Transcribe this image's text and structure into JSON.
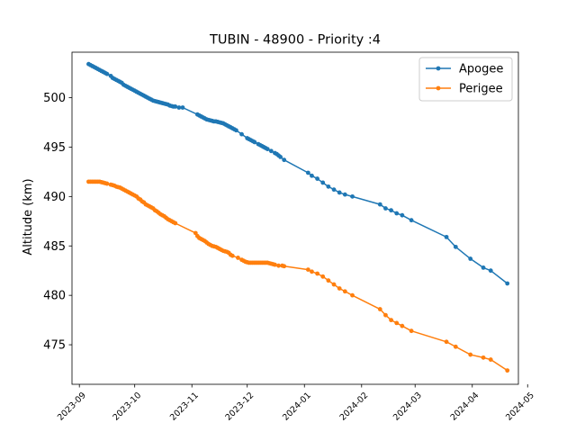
{
  "chart_data": {
    "type": "line",
    "title": "TUBIN - 48900 - Priority :4",
    "xlabel": "",
    "ylabel": "Altitude (km)",
    "x_ticks": [
      "2023-09",
      "2023-10",
      "2023-11",
      "2023-12",
      "2024-01",
      "2024-02",
      "2024-03",
      "2024-04",
      "2024-05"
    ],
    "y_ticks": [
      "475",
      "480",
      "485",
      "490",
      "495",
      "500"
    ],
    "ylim": [
      471,
      504.6
    ],
    "xlim": [
      "2023-08-28",
      "2024-04-26"
    ],
    "grid": false,
    "legend_position": "top-right",
    "series": [
      {
        "name": "Apogee",
        "color": "#1f77b4",
        "points": [
          [
            "2023-09-06",
            503.4
          ],
          [
            "2023-09-07",
            503.3
          ],
          [
            "2023-09-08",
            503.2
          ],
          [
            "2023-09-09",
            503.1
          ],
          [
            "2023-09-10",
            503.0
          ],
          [
            "2023-09-11",
            502.9
          ],
          [
            "2023-09-12",
            502.8
          ],
          [
            "2023-09-13",
            502.7
          ],
          [
            "2023-09-14",
            502.6
          ],
          [
            "2023-09-15",
            502.5
          ],
          [
            "2023-09-16",
            502.4
          ],
          [
            "2023-09-18",
            502.2
          ],
          [
            "2023-09-19",
            502.0
          ],
          [
            "2023-09-20",
            501.9
          ],
          [
            "2023-09-21",
            501.8
          ],
          [
            "2023-09-22",
            501.7
          ],
          [
            "2023-09-23",
            501.6
          ],
          [
            "2023-09-24",
            501.5
          ],
          [
            "2023-09-25",
            501.3
          ],
          [
            "2023-09-26",
            501.2
          ],
          [
            "2023-09-27",
            501.1
          ],
          [
            "2023-09-28",
            501.0
          ],
          [
            "2023-09-29",
            500.9
          ],
          [
            "2023-09-30",
            500.8
          ],
          [
            "2023-10-01",
            500.7
          ],
          [
            "2023-10-02",
            500.6
          ],
          [
            "2023-10-03",
            500.5
          ],
          [
            "2023-10-04",
            500.4
          ],
          [
            "2023-10-05",
            500.3
          ],
          [
            "2023-10-06",
            500.2
          ],
          [
            "2023-10-07",
            500.1
          ],
          [
            "2023-10-08",
            500.0
          ],
          [
            "2023-10-09",
            499.9
          ],
          [
            "2023-10-10",
            499.8
          ],
          [
            "2023-10-11",
            499.7
          ],
          [
            "2023-10-12",
            499.65
          ],
          [
            "2023-10-13",
            499.6
          ],
          [
            "2023-10-14",
            499.55
          ],
          [
            "2023-10-15",
            499.5
          ],
          [
            "2023-10-16",
            499.45
          ],
          [
            "2023-10-17",
            499.4
          ],
          [
            "2023-10-18",
            499.35
          ],
          [
            "2023-10-19",
            499.3
          ],
          [
            "2023-10-20",
            499.2
          ],
          [
            "2023-10-21",
            499.15
          ],
          [
            "2023-10-22",
            499.1
          ],
          [
            "2023-10-23",
            499.1
          ],
          [
            "2023-10-25",
            499.0
          ],
          [
            "2023-10-27",
            499.0
          ],
          [
            "2023-11-04",
            498.3
          ],
          [
            "2023-11-05",
            498.2
          ],
          [
            "2023-11-06",
            498.1
          ],
          [
            "2023-11-07",
            498.0
          ],
          [
            "2023-11-08",
            497.9
          ],
          [
            "2023-11-09",
            497.8
          ],
          [
            "2023-11-10",
            497.75
          ],
          [
            "2023-11-11",
            497.7
          ],
          [
            "2023-11-12",
            497.65
          ],
          [
            "2023-11-13",
            497.6
          ],
          [
            "2023-11-14",
            497.6
          ],
          [
            "2023-11-15",
            497.55
          ],
          [
            "2023-11-16",
            497.5
          ],
          [
            "2023-11-17",
            497.45
          ],
          [
            "2023-11-18",
            497.4
          ],
          [
            "2023-11-19",
            497.3
          ],
          [
            "2023-11-20",
            497.2
          ],
          [
            "2023-11-21",
            497.1
          ],
          [
            "2023-11-22",
            497.0
          ],
          [
            "2023-11-23",
            496.9
          ],
          [
            "2023-11-24",
            496.8
          ],
          [
            "2023-11-25",
            496.7
          ],
          [
            "2023-11-28",
            496.3
          ],
          [
            "2023-12-01",
            495.9
          ],
          [
            "2023-12-02",
            495.8
          ],
          [
            "2023-12-03",
            495.7
          ],
          [
            "2023-12-04",
            495.6
          ],
          [
            "2023-12-05",
            495.5
          ],
          [
            "2023-12-07",
            495.3
          ],
          [
            "2023-12-08",
            495.2
          ],
          [
            "2023-12-09",
            495.1
          ],
          [
            "2023-12-10",
            495.0
          ],
          [
            "2023-12-11",
            494.9
          ],
          [
            "2023-12-12",
            494.8
          ],
          [
            "2023-12-14",
            494.6
          ],
          [
            "2023-12-16",
            494.4
          ],
          [
            "2023-12-17",
            494.3
          ],
          [
            "2023-12-18",
            494.15
          ],
          [
            "2023-12-19",
            494.0
          ],
          [
            "2023-12-21",
            493.7
          ],
          [
            "2024-01-03",
            492.4
          ],
          [
            "2024-01-05",
            492.1
          ],
          [
            "2024-01-08",
            491.8
          ],
          [
            "2024-01-11",
            491.4
          ],
          [
            "2024-01-14",
            491.0
          ],
          [
            "2024-01-17",
            490.7
          ],
          [
            "2024-01-20",
            490.4
          ],
          [
            "2024-01-23",
            490.2
          ],
          [
            "2024-01-27",
            490.0
          ],
          [
            "2024-02-11",
            489.2
          ],
          [
            "2024-02-14",
            488.8
          ],
          [
            "2024-02-17",
            488.6
          ],
          [
            "2024-02-20",
            488.3
          ],
          [
            "2024-02-23",
            488.1
          ],
          [
            "2024-02-28",
            487.6
          ],
          [
            "2024-03-18",
            485.9
          ],
          [
            "2024-03-23",
            484.9
          ],
          [
            "2024-03-31",
            483.7
          ],
          [
            "2024-04-07",
            482.8
          ],
          [
            "2024-04-11",
            482.5
          ],
          [
            "2024-04-20",
            481.2
          ]
        ]
      },
      {
        "name": "Perigee",
        "color": "#ff7f0e",
        "points": [
          [
            "2023-09-06",
            491.5
          ],
          [
            "2023-09-07",
            491.5
          ],
          [
            "2023-09-08",
            491.5
          ],
          [
            "2023-09-09",
            491.5
          ],
          [
            "2023-09-10",
            491.5
          ],
          [
            "2023-09-11",
            491.5
          ],
          [
            "2023-09-12",
            491.5
          ],
          [
            "2023-09-13",
            491.45
          ],
          [
            "2023-09-14",
            491.4
          ],
          [
            "2023-09-15",
            491.35
          ],
          [
            "2023-09-16",
            491.3
          ],
          [
            "2023-09-18",
            491.2
          ],
          [
            "2023-09-19",
            491.15
          ],
          [
            "2023-09-20",
            491.1
          ],
          [
            "2023-09-21",
            491.0
          ],
          [
            "2023-09-22",
            490.95
          ],
          [
            "2023-09-23",
            490.9
          ],
          [
            "2023-09-24",
            490.8
          ],
          [
            "2023-09-25",
            490.7
          ],
          [
            "2023-09-26",
            490.6
          ],
          [
            "2023-09-27",
            490.5
          ],
          [
            "2023-09-28",
            490.4
          ],
          [
            "2023-09-29",
            490.3
          ],
          [
            "2023-09-30",
            490.2
          ],
          [
            "2023-10-01",
            490.1
          ],
          [
            "2023-10-02",
            490.0
          ],
          [
            "2023-10-03",
            489.8
          ],
          [
            "2023-10-04",
            489.7
          ],
          [
            "2023-10-05",
            489.5
          ],
          [
            "2023-10-06",
            489.4
          ],
          [
            "2023-10-07",
            489.2
          ],
          [
            "2023-10-08",
            489.1
          ],
          [
            "2023-10-09",
            489.0
          ],
          [
            "2023-10-10",
            488.9
          ],
          [
            "2023-10-11",
            488.8
          ],
          [
            "2023-10-12",
            488.6
          ],
          [
            "2023-10-13",
            488.5
          ],
          [
            "2023-10-14",
            488.35
          ],
          [
            "2023-10-15",
            488.2
          ],
          [
            "2023-10-16",
            488.1
          ],
          [
            "2023-10-17",
            488.0
          ],
          [
            "2023-10-18",
            487.85
          ],
          [
            "2023-10-19",
            487.7
          ],
          [
            "2023-10-20",
            487.6
          ],
          [
            "2023-10-21",
            487.5
          ],
          [
            "2023-10-22",
            487.4
          ],
          [
            "2023-10-23",
            487.3
          ],
          [
            "2023-11-03",
            486.3
          ],
          [
            "2023-11-04",
            486.0
          ],
          [
            "2023-11-05",
            485.8
          ],
          [
            "2023-11-06",
            485.7
          ],
          [
            "2023-11-07",
            485.6
          ],
          [
            "2023-11-08",
            485.5
          ],
          [
            "2023-11-09",
            485.35
          ],
          [
            "2023-11-10",
            485.2
          ],
          [
            "2023-11-11",
            485.1
          ],
          [
            "2023-11-12",
            485.0
          ],
          [
            "2023-11-13",
            484.95
          ],
          [
            "2023-11-14",
            484.9
          ],
          [
            "2023-11-15",
            484.8
          ],
          [
            "2023-11-16",
            484.7
          ],
          [
            "2023-11-17",
            484.6
          ],
          [
            "2023-11-18",
            484.5
          ],
          [
            "2023-11-19",
            484.45
          ],
          [
            "2023-11-20",
            484.4
          ],
          [
            "2023-11-21",
            484.3
          ],
          [
            "2023-11-22",
            484.1
          ],
          [
            "2023-11-23",
            484.0
          ],
          [
            "2023-11-26",
            483.8
          ],
          [
            "2023-11-28",
            483.6
          ],
          [
            "2023-11-29",
            483.5
          ],
          [
            "2023-11-30",
            483.4
          ],
          [
            "2023-12-01",
            483.35
          ],
          [
            "2023-12-02",
            483.3
          ],
          [
            "2023-12-03",
            483.3
          ],
          [
            "2023-12-04",
            483.3
          ],
          [
            "2023-12-05",
            483.3
          ],
          [
            "2023-12-06",
            483.3
          ],
          [
            "2023-12-07",
            483.3
          ],
          [
            "2023-12-08",
            483.3
          ],
          [
            "2023-12-09",
            483.3
          ],
          [
            "2023-12-10",
            483.3
          ],
          [
            "2023-12-11",
            483.3
          ],
          [
            "2023-12-12",
            483.3
          ],
          [
            "2023-12-13",
            483.25
          ],
          [
            "2023-12-14",
            483.2
          ],
          [
            "2023-12-15",
            483.15
          ],
          [
            "2023-12-16",
            483.1
          ],
          [
            "2023-12-18",
            483.0
          ],
          [
            "2023-12-20",
            483.0
          ],
          [
            "2023-12-21",
            482.95
          ],
          [
            "2024-01-03",
            482.6
          ],
          [
            "2024-01-05",
            482.4
          ],
          [
            "2024-01-08",
            482.2
          ],
          [
            "2024-01-11",
            481.9
          ],
          [
            "2024-01-14",
            481.5
          ],
          [
            "2024-01-17",
            481.1
          ],
          [
            "2024-01-20",
            480.7
          ],
          [
            "2024-01-23",
            480.4
          ],
          [
            "2024-01-27",
            480.0
          ],
          [
            "2024-02-11",
            478.6
          ],
          [
            "2024-02-14",
            478.0
          ],
          [
            "2024-02-17",
            477.5
          ],
          [
            "2024-02-20",
            477.2
          ],
          [
            "2024-02-23",
            476.9
          ],
          [
            "2024-02-28",
            476.4
          ],
          [
            "2024-03-18",
            475.3
          ],
          [
            "2024-03-23",
            474.8
          ],
          [
            "2024-03-31",
            474.0
          ],
          [
            "2024-04-07",
            473.7
          ],
          [
            "2024-04-11",
            473.5
          ],
          [
            "2024-04-20",
            472.4
          ]
        ]
      }
    ]
  }
}
